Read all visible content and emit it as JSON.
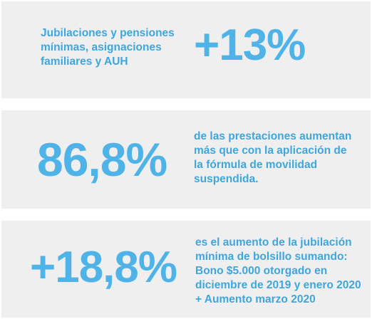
{
  "cards": [
    {
      "big_value": "+13%",
      "text_lines": [
        "Jubilaciones y pensiones",
        "mínimas, asignaciones",
        "familiares y AUH"
      ]
    },
    {
      "big_value": "86,8%",
      "text_lines": [
        "de las prestaciones aumentan",
        "más que con la aplicación de",
        "la fórmula de movilidad",
        "suspendida."
      ]
    },
    {
      "big_value": "+18,8%",
      "text_lines": [
        "es el aumento de la jubilación",
        "mínima de bolsillo sumando:",
        "Bono $5.000 otorgado en",
        "diciembre de 2019 y enero 2020",
        "+ Aumento marzo 2020"
      ]
    }
  ],
  "colors": {
    "accent": "#4fb3e8",
    "text_accent": "#3fa6dc",
    "panel_bg": "#efefef"
  }
}
